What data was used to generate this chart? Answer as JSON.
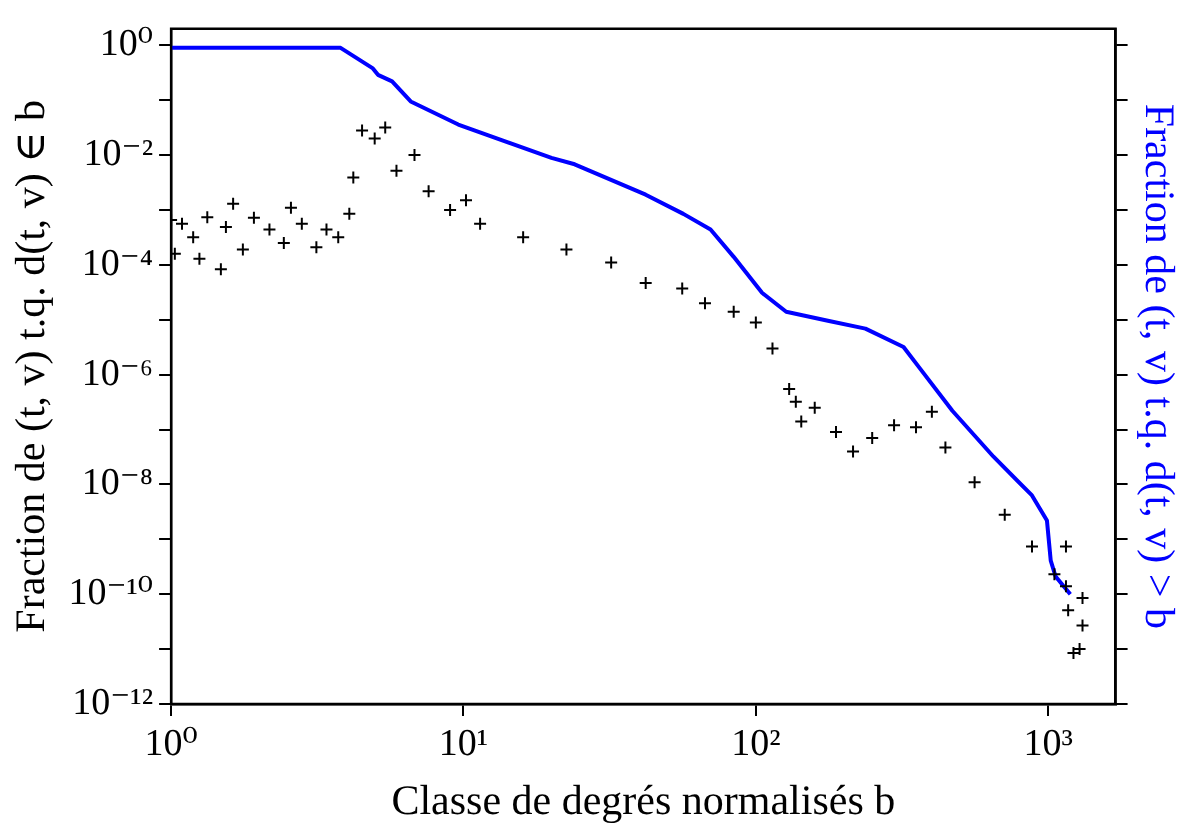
{
  "chart_data": {
    "type": "scatter",
    "xlabel": "Classe de degrés normalisés b",
    "ylabel": "Fraction de (t, v) t.q. d(t, v) ∈ b",
    "y2label": "Fraction de (t, v) t.q. d(t, v) > b",
    "log": "xy",
    "xlim": [
      1,
      1700
    ],
    "xticks": [
      {
        "value": 1,
        "label": "10⁰"
      },
      {
        "value": 10,
        "label": "10¹"
      },
      {
        "value": 100,
        "label": "10²"
      },
      {
        "value": 1000,
        "label": "10³"
      }
    ],
    "ylim": [
      1e-12,
      2
    ],
    "yticks": [
      {
        "value": 1e-12,
        "label": "10⁻¹²"
      },
      {
        "value": 1e-11,
        "label": null
      },
      {
        "value": 1e-10,
        "label": "10⁻¹⁰"
      },
      {
        "value": 1e-09,
        "label": null
      },
      {
        "value": 1e-08,
        "label": "10⁻⁸"
      },
      {
        "value": 1e-07,
        "label": null
      },
      {
        "value": 1e-06,
        "label": "10⁻⁶"
      },
      {
        "value": 1e-05,
        "label": null
      },
      {
        "value": 0.0001,
        "label": "10⁻⁴"
      },
      {
        "value": 0.001,
        "label": null
      },
      {
        "value": 0.01,
        "label": "10⁻²"
      },
      {
        "value": 0.1,
        "label": null
      },
      {
        "value": 1,
        "label": "10⁰"
      }
    ],
    "tick_labels": "xy",
    "series": [
      {
        "type": "scatter",
        "color": "#000000",
        "marker": "cross",
        "x": [
          1,
          1.03,
          1.09,
          1.19,
          1.25,
          1.33,
          1.48,
          1.54,
          1.63,
          1.76,
          1.92,
          2.17,
          2.43,
          2.57,
          2.8,
          3.14,
          3.4,
          3.73,
          4.07,
          4.2,
          4.5,
          4.97,
          5.4,
          5.9,
          6.8,
          7.6,
          9,
          10.2,
          11.4,
          16,
          22.5,
          32,
          42,
          56,
          67,
          84,
          100,
          114,
          130,
          137,
          143,
          159,
          188,
          215,
          250,
          297,
          353,
          400,
          445,
          560,
          710,
          880,
          1050,
          1150,
          1150,
          1170,
          1220,
          1280,
          1310,
          1310
        ],
        "values": [
          0.00066,
          0.00016,
          0.00056,
          0.00032,
          0.00013,
          0.00074,
          8.3e-05,
          0.00049,
          0.0013,
          0.00019,
          0.00072,
          0.00044,
          0.00025,
          0.0011,
          0.00056,
          0.00021,
          0.00044,
          0.00032,
          0.00085,
          0.0039,
          0.028,
          0.02,
          0.032,
          0.0052,
          0.01,
          0.0022,
          0.001,
          0.0015,
          0.00056,
          0.00032,
          0.00019,
          0.00011,
          4.7e-05,
          3.7e-05,
          2e-05,
          1.4e-05,
          8.9e-06,
          3e-06,
          5.5e-07,
          3.2e-07,
          1.4e-07,
          2.5e-07,
          9e-08,
          4e-08,
          7e-08,
          1.2e-07,
          1.1e-07,
          2.1e-07,
          4.7e-08,
          1.1e-08,
          2.8e-09,
          7.4e-10,
          2.3e-10,
          1.4e-10,
          7.4e-10,
          5.1e-11,
          8.5e-12,
          1e-11,
          8.5e-11,
          2.7e-11
        ]
      },
      {
        "type": "line",
        "color": "#0000ff",
        "marker": "none",
        "line_style": "solid",
        "x": [
          1,
          3.8,
          4.9,
          5.1,
          5.7,
          6.6,
          9.6,
          20,
          24,
          42,
          56.5,
          70,
          84,
          105,
          127,
          178,
          237,
          320,
          364,
          470,
          650,
          880,
          990,
          1020,
          1060,
          1190
        ],
        "values": [
          0.9,
          0.9,
          0.38,
          0.29,
          0.22,
          0.095,
          0.036,
          0.0089,
          0.0068,
          0.0019,
          0.00085,
          0.00044,
          0.00014,
          3.1e-05,
          1.4e-05,
          9.5e-06,
          6.9e-06,
          3.2e-06,
          1.3e-06,
          2.2e-07,
          3.2e-08,
          6.3e-09,
          2.2e-09,
          4.1e-10,
          2.1e-10,
          1e-10
        ]
      }
    ]
  }
}
